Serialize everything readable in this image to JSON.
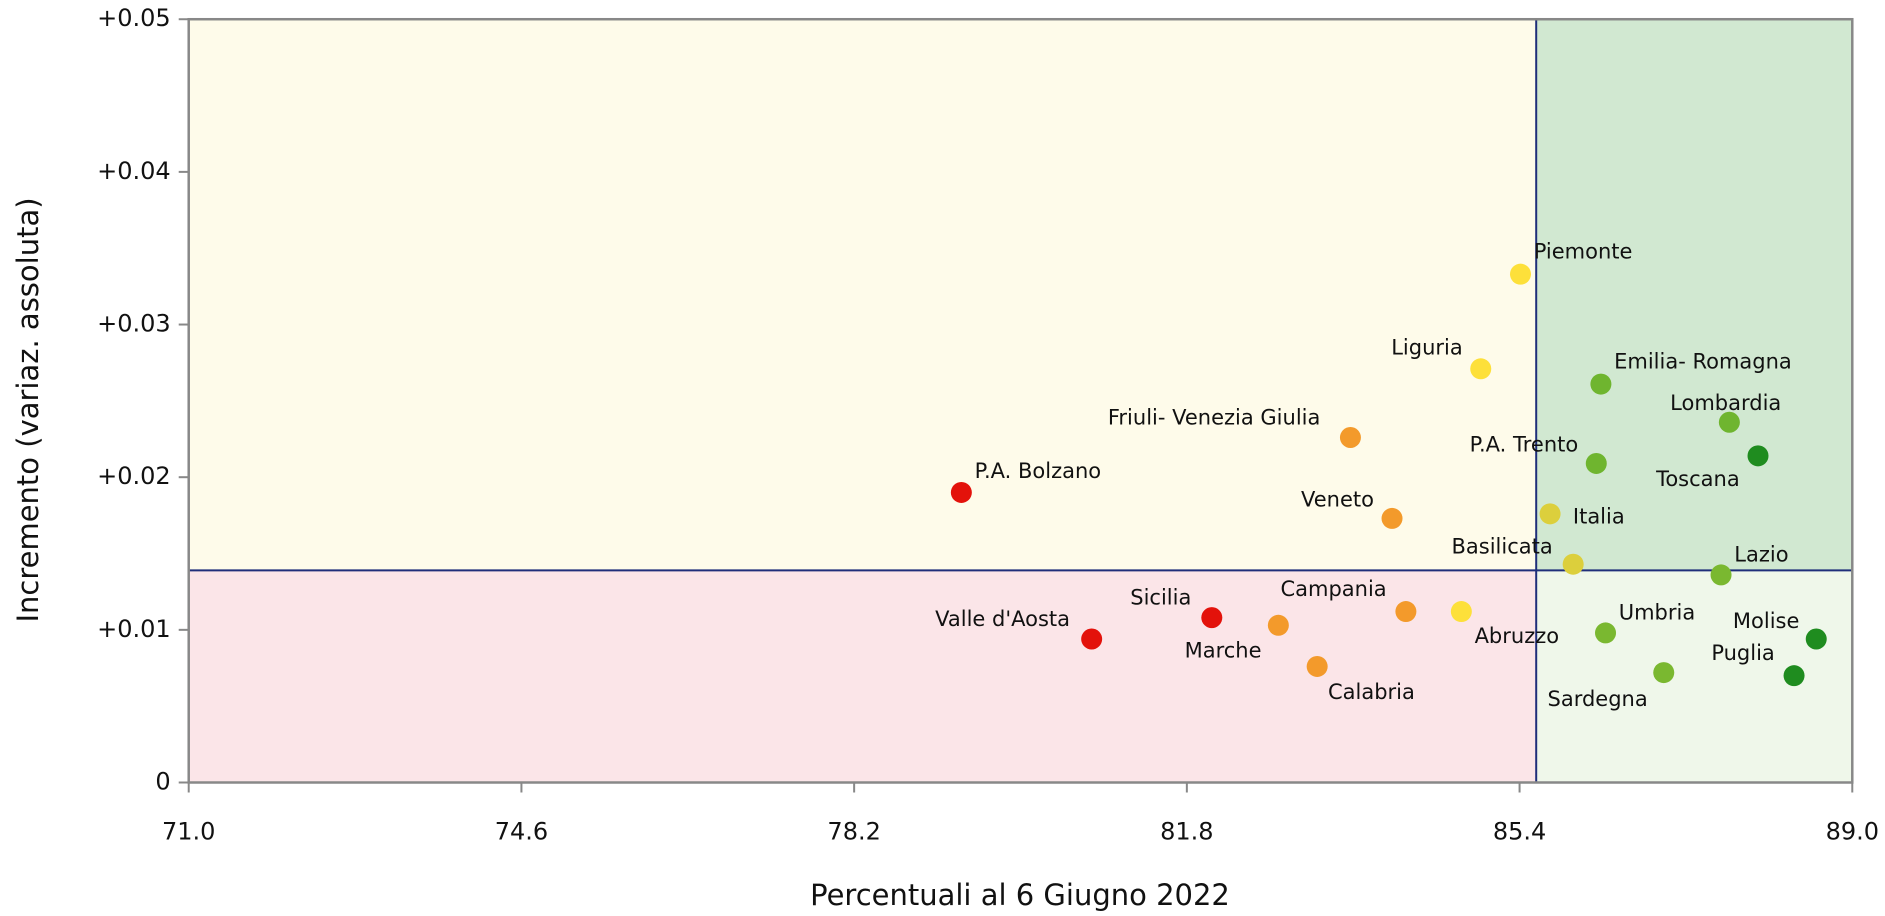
{
  "chart_data": {
    "type": "scatter",
    "xlabel": "Percentuali al 6 Giugno 2022",
    "ylabel": "Incremento (variaz. assoluta)",
    "xlim": [
      71,
      89
    ],
    "ylim": [
      0,
      0.05
    ],
    "xticks": [
      {
        "value": 71,
        "label": "71.0"
      },
      74.6,
      78.2,
      81.8,
      85.4,
      {
        "value": 89,
        "label": "89.0"
      }
    ],
    "yticks": [
      0,
      {
        "value": 0.01,
        "label": "+0.01"
      },
      {
        "value": 0.02,
        "label": "+0.02"
      },
      {
        "value": 0.03,
        "label": "+0.03"
      },
      {
        "value": 0.04,
        "label": "+0.04"
      },
      {
        "value": 0.05,
        "label": "+0.05"
      }
    ],
    "reference_x": 85.58,
    "reference_y": 0.0139,
    "quadrant_colors": {
      "top_left": "#fefbea",
      "top_right": "#d1e8d1",
      "bottom_left": "#fbe5e8",
      "bottom_right": "#eff7ea"
    },
    "reference_color": "#1f2e7a",
    "labels": [
      "Piemonte",
      "Liguria",
      "Emilia- Romagna",
      "Lombardia",
      "Toscana",
      "P.A. Trento",
      "Friuli- Venezia Giulia",
      "P.A. Bolzano",
      "Veneto",
      "Italia",
      "Basilicata",
      "Lazio",
      "Valle d'Aosta",
      "Sicilia",
      "Marche",
      "Calabria",
      "Campania",
      "Abruzzo",
      "Umbria",
      "Sardegna",
      "Puglia",
      "Molise"
    ],
    "x": [
      85.41,
      84.98,
      86.28,
      87.67,
      87.98,
      86.23,
      83.57,
      79.36,
      84.02,
      85.73,
      85.98,
      87.58,
      80.77,
      82.07,
      82.79,
      83.21,
      84.17,
      84.77,
      86.33,
      86.96,
      88.37,
      88.61
    ],
    "y": [
      0.0333,
      0.0271,
      0.0261,
      0.0236,
      0.0214,
      0.0209,
      0.0226,
      0.019,
      0.0173,
      0.0176,
      0.0143,
      0.0136,
      0.0094,
      0.0108,
      0.0103,
      0.0076,
      0.0112,
      0.0112,
      0.0098,
      0.0072,
      0.007,
      0.0094
    ],
    "colors": [
      "#fde03a",
      "#fde03a",
      "#6fb52f",
      "#6fb52f",
      "#1f8c1f",
      "#6fb52f",
      "#f39a2b",
      "#e3120b",
      "#f39a2b",
      "#dccf3c",
      "#dccf3c",
      "#7ab830",
      "#e3120b",
      "#e3120b",
      "#f39a2b",
      "#f39a2b",
      "#f39a2b",
      "#fde03a",
      "#7ab830",
      "#7ab830",
      "#1f8c1f",
      "#1f8c1f"
    ]
  }
}
